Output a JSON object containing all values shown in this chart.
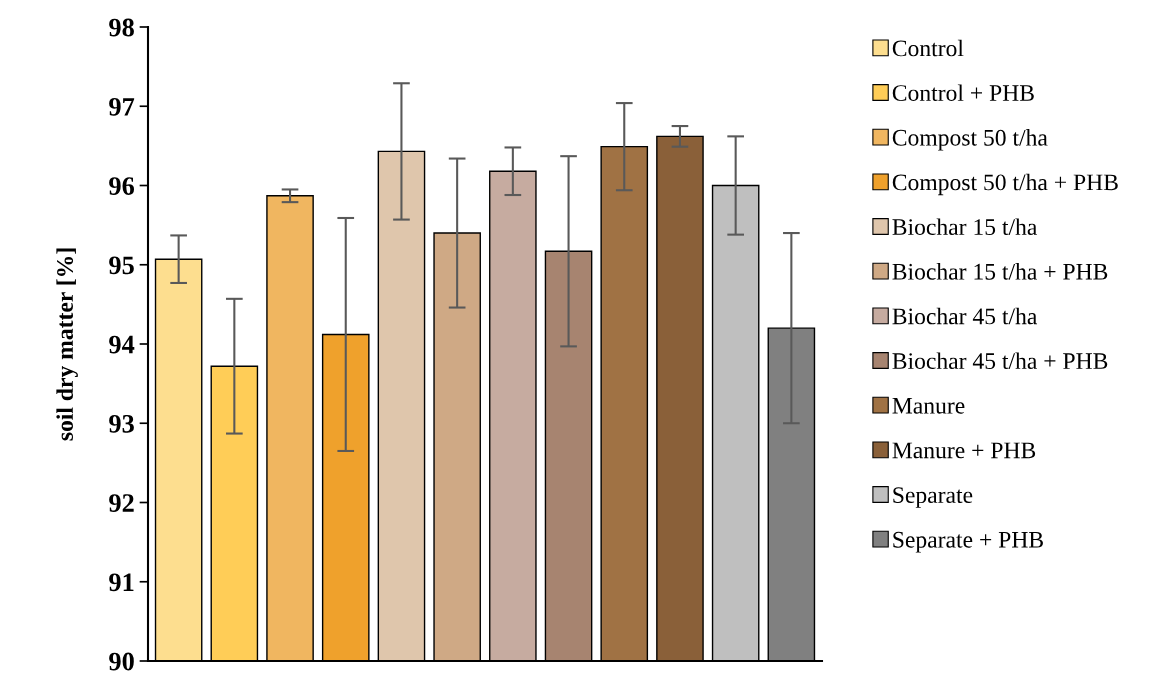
{
  "chart_data": {
    "type": "bar",
    "ylabel": "soil dry matter [%]",
    "categories": [
      null,
      null,
      null,
      null,
      null,
      null,
      null,
      null,
      null,
      null,
      null,
      null
    ],
    "series": [
      {
        "name": "Control",
        "color": "#fdde8f",
        "values": [
          95.07,
          null,
          null,
          null,
          null,
          null,
          null,
          null,
          null,
          null,
          null,
          null
        ],
        "errors": [
          0.3,
          null,
          null,
          null,
          null,
          null,
          null,
          null,
          null,
          null,
          null,
          null
        ]
      },
      {
        "name": "Control + PHB",
        "color": "#ffcd57",
        "values": [
          null,
          93.72,
          null,
          null,
          null,
          null,
          null,
          null,
          null,
          null,
          null,
          null
        ],
        "errors": [
          null,
          0.85,
          null,
          null,
          null,
          null,
          null,
          null,
          null,
          null,
          null,
          null
        ]
      },
      {
        "name": "Compost 50 t/ha",
        "color": "#f0b660",
        "values": [
          null,
          null,
          95.87,
          null,
          null,
          null,
          null,
          null,
          null,
          null,
          null,
          null
        ],
        "errors": [
          null,
          null,
          0.08,
          null,
          null,
          null,
          null,
          null,
          null,
          null,
          null,
          null
        ]
      },
      {
        "name": "Compost 50 t/ha + PHB",
        "color": "#efa12c",
        "values": [
          null,
          null,
          null,
          94.12,
          null,
          null,
          null,
          null,
          null,
          null,
          null,
          null
        ],
        "errors": [
          null,
          null,
          null,
          1.47,
          null,
          null,
          null,
          null,
          null,
          null,
          null,
          null
        ]
      },
      {
        "name": "Biochar 15 t/ha",
        "color": "#dfc6ac",
        "values": [
          null,
          null,
          null,
          null,
          96.43,
          null,
          null,
          null,
          null,
          null,
          null,
          null
        ],
        "errors": [
          null,
          null,
          null,
          null,
          0.86,
          null,
          null,
          null,
          null,
          null,
          null,
          null
        ]
      },
      {
        "name": "Biochar 15 t/ha + PHB",
        "color": "#cfa985",
        "values": [
          null,
          null,
          null,
          null,
          null,
          95.4,
          null,
          null,
          null,
          null,
          null,
          null
        ],
        "errors": [
          null,
          null,
          null,
          null,
          null,
          0.94,
          null,
          null,
          null,
          null,
          null,
          null
        ]
      },
      {
        "name": "Biochar 45 t/ha",
        "color": "#c6aba0",
        "values": [
          null,
          null,
          null,
          null,
          null,
          null,
          96.18,
          null,
          null,
          null,
          null,
          null
        ],
        "errors": [
          null,
          null,
          null,
          null,
          null,
          null,
          0.3,
          null,
          null,
          null,
          null,
          null
        ]
      },
      {
        "name": "Biochar 45 t/ha + PHB",
        "color": "#a78470",
        "values": [
          null,
          null,
          null,
          null,
          null,
          null,
          null,
          95.17,
          null,
          null,
          null,
          null
        ],
        "errors": [
          null,
          null,
          null,
          null,
          null,
          null,
          null,
          1.2,
          null,
          null,
          null,
          null
        ]
      },
      {
        "name": "Manure",
        "color": "#a07244",
        "values": [
          null,
          null,
          null,
          null,
          null,
          null,
          null,
          null,
          96.49,
          null,
          null,
          null
        ],
        "errors": [
          null,
          null,
          null,
          null,
          null,
          null,
          null,
          null,
          0.55,
          null,
          null,
          null
        ]
      },
      {
        "name": "Manure + PHB",
        "color": "#8a6039",
        "values": [
          null,
          null,
          null,
          null,
          null,
          null,
          null,
          null,
          null,
          96.62,
          null,
          null
        ],
        "errors": [
          null,
          null,
          null,
          null,
          null,
          null,
          null,
          null,
          null,
          0.13,
          null,
          null
        ]
      },
      {
        "name": "Separate",
        "color": "#bfbfbf",
        "values": [
          null,
          null,
          null,
          null,
          null,
          null,
          null,
          null,
          null,
          null,
          96.0,
          null
        ],
        "errors": [
          null,
          null,
          null,
          null,
          null,
          null,
          null,
          null,
          null,
          null,
          0.62,
          null
        ]
      },
      {
        "name": "Separate + PHB",
        "color": "#808080",
        "values": [
          null,
          null,
          null,
          null,
          null,
          null,
          null,
          null,
          null,
          null,
          null,
          94.2
        ],
        "errors": [
          null,
          null,
          null,
          null,
          null,
          null,
          null,
          null,
          null,
          null,
          null,
          1.2
        ]
      }
    ],
    "ylim": [
      90,
      98
    ],
    "yticks": [
      90,
      91,
      92,
      93,
      94,
      95,
      96,
      97,
      98
    ],
    "grid": false,
    "legend": "right",
    "tick_labels": "y"
  }
}
